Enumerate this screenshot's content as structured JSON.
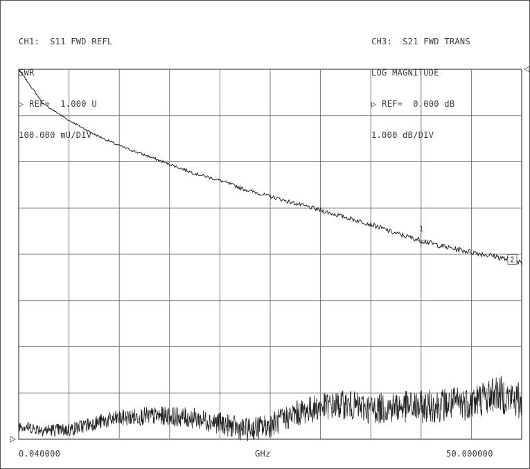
{
  "ch1": {
    "title": "CH1:  S11 FWD REFL",
    "format": "SWR",
    "ref": "REF=  1.000 U",
    "scale": "100.000 mU/DIV"
  },
  "ch3": {
    "title": "CH3:  S21 FWD TRANS",
    "format": "LOG MAGNITUDE",
    "ref": "REF=  0.000 dB",
    "scale": "1.000 dB/DIV"
  },
  "x_axis": {
    "start": "0.040000",
    "unit": "GHz",
    "stop": "50.000000"
  },
  "markers": [
    {
      "label": "1",
      "x_ghz": 40.0
    },
    {
      "label": "2",
      "x_ghz": 50.0
    }
  ],
  "chart_data": {
    "type": "line",
    "x_range_ghz": [
      0.04,
      50.0
    ],
    "grid": true,
    "divisions": {
      "x": 10,
      "y": 8
    },
    "series": [
      {
        "name": "CH3:  S21 FWD TRANS",
        "units": "dB",
        "x": [
          0.04,
          2.5,
          5,
          7.5,
          10,
          12.5,
          15,
          17.5,
          20,
          22.5,
          25,
          27.5,
          30,
          32.5,
          35,
          37.5,
          40,
          42.5,
          45,
          47.5,
          50
        ],
        "y": [
          0.0,
          -0.75,
          -1.1,
          -1.4,
          -1.65,
          -1.85,
          -2.05,
          -2.25,
          -2.4,
          -2.6,
          -2.75,
          -2.9,
          -3.05,
          -3.2,
          -3.35,
          -3.55,
          -3.7,
          -3.85,
          -3.95,
          -4.05,
          -4.2
        ]
      },
      {
        "name": "CH1:  S11 FWD REFL",
        "units": "U",
        "x": [
          0.04,
          2.5,
          5,
          7.5,
          10,
          12.5,
          15,
          17.5,
          20,
          22.5,
          25,
          27.5,
          30,
          32.5,
          35,
          37.5,
          40,
          42.5,
          45,
          47.5,
          50
        ],
        "y": [
          1.03,
          1.02,
          1.02,
          1.035,
          1.045,
          1.05,
          1.05,
          1.045,
          1.035,
          1.02,
          1.03,
          1.055,
          1.07,
          1.075,
          1.065,
          1.07,
          1.07,
          1.075,
          1.08,
          1.1,
          1.08
        ]
      }
    ]
  }
}
